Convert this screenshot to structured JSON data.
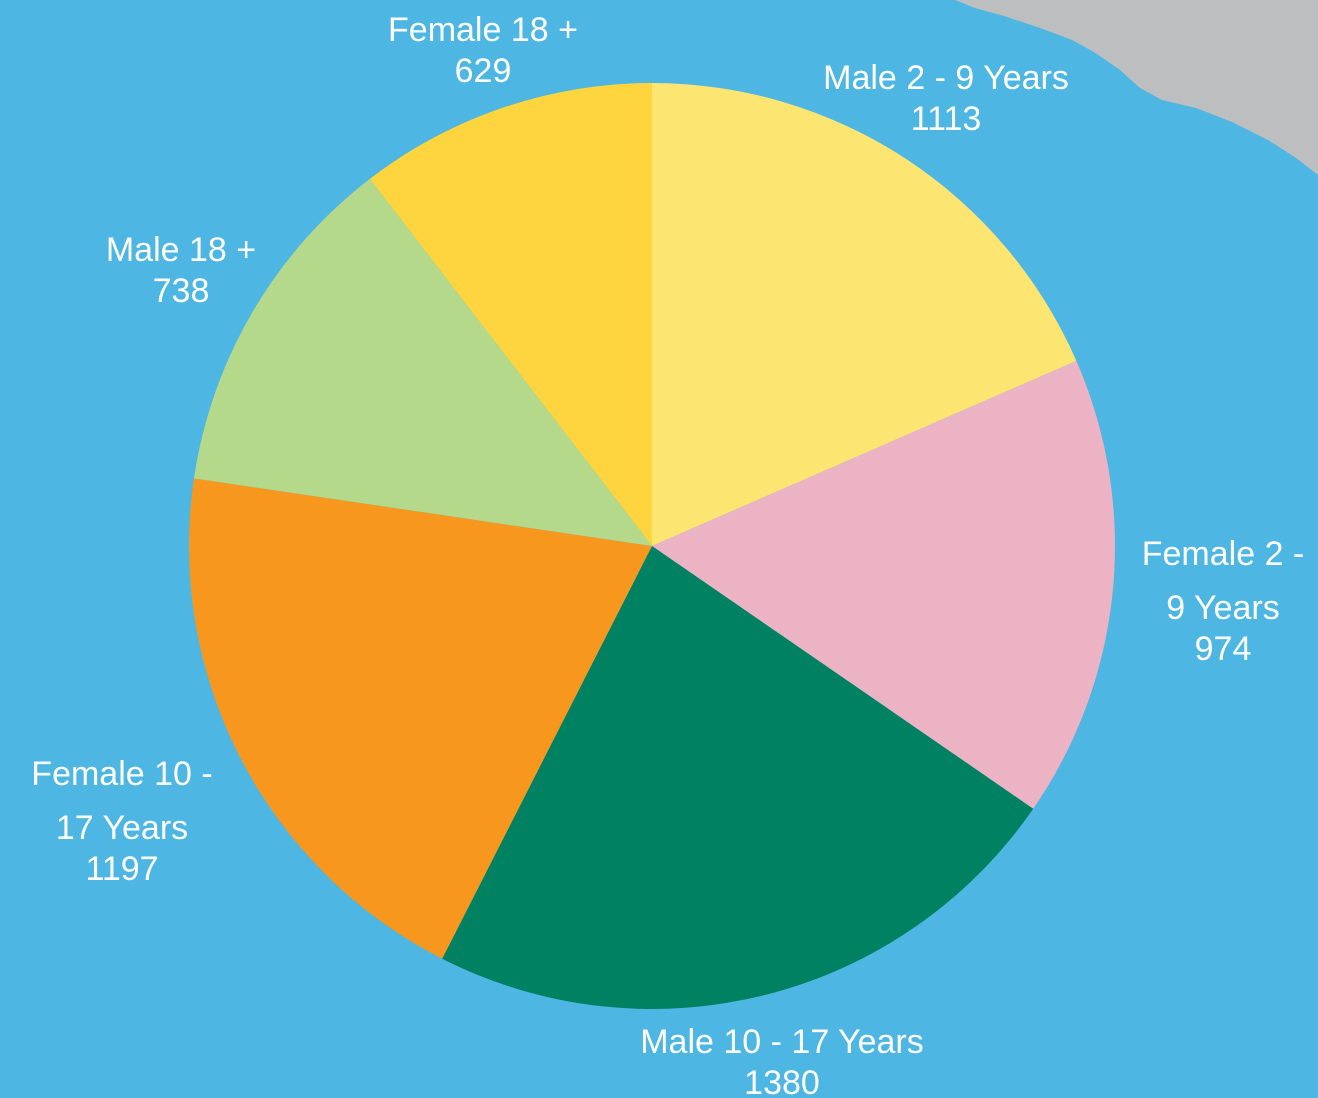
{
  "chart_data": {
    "type": "pie",
    "start": "12 o'clock",
    "direction": "clockwise",
    "slices": [
      {
        "name": "Male 2 - 9 Years",
        "value": 1113,
        "color": "#fde572",
        "label_lines": [
          "Male 2 - 9 Years",
          "1113"
        ]
      },
      {
        "name": "Female 2 - 9 Years",
        "value": 974,
        "color": "#ebb3c3",
        "label_lines": [
          "Female 2 -",
          "9 Years",
          "974"
        ]
      },
      {
        "name": "Male 10 - 17 Years",
        "value": 1380,
        "color": "#008262",
        "label_lines": [
          "Male 10 - 17 Years",
          "1380"
        ]
      },
      {
        "name": "Female 10 - 17 Years",
        "value": 1197,
        "color": "#f7971e",
        "label_lines": [
          "Female 10 -",
          "17 Years",
          "1197"
        ]
      },
      {
        "name": "Male 18 +",
        "value": 738,
        "color": "#b5d98b",
        "label_lines": [
          "Male 18 +",
          "738"
        ]
      },
      {
        "name": "Female 18 +",
        "value": 629,
        "color": "#fed43f",
        "label_lines": [
          "Female 18 +",
          "629"
        ]
      }
    ]
  },
  "colors": {
    "background": "#4db6e2",
    "map_fragment": "#bcbec0"
  }
}
